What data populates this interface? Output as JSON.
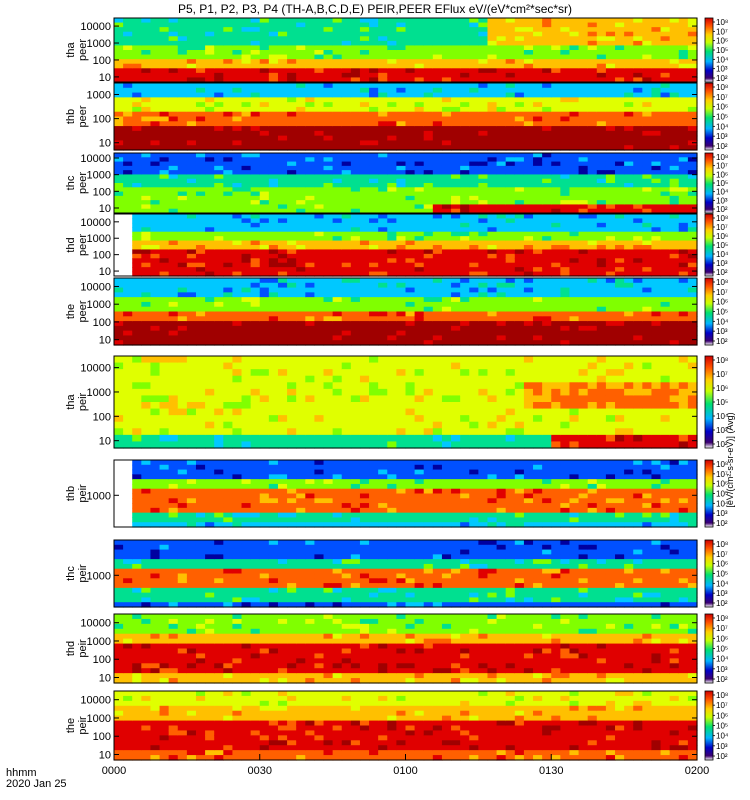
{
  "title": "P5, P1, P2, P3, P4 (TH-A,B,C,D,E) PEIR,PEER EFlux eV/(eV*cm²*sec*sr)",
  "time_axis": {
    "label": "hhmm",
    "date": "2020 Jan 25",
    "ticks": [
      "0000",
      "0030",
      "0100",
      "0130",
      "0200"
    ]
  },
  "colorbar": {
    "unit_label": "[eV/(cm²-s-sr-eV)] (Avg)",
    "tick_labels": [
      "10²",
      "10³",
      "10⁴",
      "10⁵",
      "10⁶",
      "10⁷",
      "10⁸"
    ]
  },
  "colors": {
    "background": "#ffffff",
    "low": "#000080",
    "mid": "#00ff00",
    "high": "#ff0000",
    "max": "#8b0000"
  },
  "chart_data": [
    {
      "type": "heatmap",
      "panel_label": "tha\npeer",
      "ylabel": [
        "tha",
        "peer"
      ],
      "y_ticks": [
        "10",
        "100",
        "1000",
        "10000"
      ],
      "yscale": "log",
      "ylim": [
        5,
        30000
      ]
    },
    {
      "type": "heatmap",
      "panel_label": "thb\npeer",
      "ylabel": [
        "thb",
        "peer"
      ],
      "y_ticks": [
        "10",
        "100",
        "1000"
      ],
      "yscale": "log",
      "ylim": [
        5,
        3000
      ]
    },
    {
      "type": "heatmap",
      "panel_label": "thc\npeer",
      "ylabel": [
        "thc",
        "peer"
      ],
      "y_ticks": [
        "10",
        "100",
        "1000",
        "10000"
      ],
      "yscale": "log",
      "ylim": [
        5,
        20000
      ]
    },
    {
      "type": "heatmap",
      "panel_label": "thd\npeer",
      "ylabel": [
        "thd",
        "peer"
      ],
      "y_ticks": [
        "10",
        "100",
        "1000",
        "10000"
      ],
      "yscale": "log",
      "ylim": [
        5,
        30000
      ]
    },
    {
      "type": "heatmap",
      "panel_label": "the\npeer",
      "ylabel": [
        "the",
        "peer"
      ],
      "y_ticks": [
        "10",
        "100",
        "1000",
        "10000"
      ],
      "yscale": "log",
      "ylim": [
        5,
        30000
      ]
    },
    {
      "type": "heatmap",
      "panel_label": "tha\npeir",
      "ylabel": [
        "tha",
        "peir"
      ],
      "y_ticks": [
        "10",
        "100",
        "1000",
        "10000"
      ],
      "yscale": "log",
      "ylim": [
        5,
        30000
      ]
    },
    {
      "type": "heatmap",
      "panel_label": "thb\npeir",
      "ylabel": [
        "thb",
        "peir"
      ],
      "y_ticks": [
        "1000"
      ],
      "yscale": "log",
      "ylim": [
        200,
        6000
      ]
    },
    {
      "type": "heatmap",
      "panel_label": "thc\npeir",
      "ylabel": [
        "thc",
        "peir"
      ],
      "y_ticks": [
        "1000"
      ],
      "yscale": "log",
      "ylim": [
        200,
        6000
      ]
    },
    {
      "type": "heatmap",
      "panel_label": "thd\npeir",
      "ylabel": [
        "thd",
        "peir"
      ],
      "y_ticks": [
        "10",
        "100",
        "1000",
        "10000"
      ],
      "yscale": "log",
      "ylim": [
        5,
        30000
      ]
    },
    {
      "type": "heatmap",
      "panel_label": "the\npeir",
      "ylabel": [
        "the",
        "peir"
      ],
      "y_ticks": [
        "10",
        "100",
        "1000",
        "10000"
      ],
      "yscale": "log",
      "ylim": [
        5,
        30000
      ]
    }
  ]
}
